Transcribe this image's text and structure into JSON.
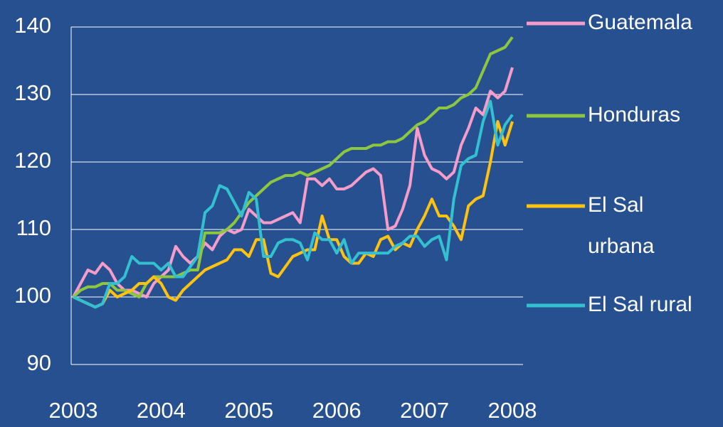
{
  "chart_data": {
    "type": "line",
    "categories": [
      "2003",
      null,
      null,
      null,
      null,
      null,
      null,
      null,
      null,
      null,
      null,
      null,
      "2004",
      null,
      null,
      null,
      null,
      null,
      null,
      null,
      null,
      null,
      null,
      null,
      "2005",
      null,
      null,
      null,
      null,
      null,
      null,
      null,
      null,
      null,
      null,
      null,
      "2006",
      null,
      null,
      null,
      null,
      null,
      null,
      null,
      null,
      null,
      null,
      null,
      "2007",
      null,
      null,
      null,
      null,
      null,
      null,
      null,
      null,
      null,
      null,
      null,
      "2008"
    ],
    "series": [
      {
        "name": "Guatemala",
        "color": "#f59ccb",
        "values": [
          100,
          102,
          104,
          103.5,
          105,
          104,
          102,
          101,
          101,
          100.5,
          100,
          102,
          103,
          104,
          107.5,
          106,
          105,
          106,
          108,
          107,
          109,
          110,
          109.5,
          110,
          113,
          112,
          111,
          111,
          111.5,
          112,
          112.5,
          111,
          117.5,
          117.5,
          116.5,
          117.5,
          116,
          116,
          116.5,
          117.5,
          118.5,
          119,
          118,
          110,
          110.5,
          113,
          116.5,
          125,
          121,
          119,
          118.5,
          117.5,
          118.5,
          122.5,
          125,
          128,
          127,
          130.5,
          129.5,
          130.5,
          134
        ]
      },
      {
        "name": "Honduras",
        "color": "#8dc63f",
        "values": [
          100,
          101,
          101.5,
          101.5,
          102,
          102,
          101,
          101,
          100.5,
          100,
          102,
          103,
          103,
          103,
          103,
          103.5,
          104,
          104,
          109.5,
          109.5,
          109.5,
          110,
          111,
          112.5,
          114,
          115,
          116,
          117,
          117.5,
          118,
          118,
          118.5,
          118,
          118.5,
          119,
          119.5,
          120.5,
          121.5,
          122,
          122,
          122,
          122.5,
          122.5,
          123,
          123,
          123.5,
          124.5,
          125.5,
          126,
          127,
          128,
          128,
          128.5,
          129.5,
          130,
          131,
          133.5,
          136,
          136.5,
          137,
          138.5
        ]
      },
      {
        "name": "El Sal urbana",
        "color": "#ffc20e",
        "values": [
          100,
          99.5,
          99,
          98.5,
          99,
          101,
          100,
          100.5,
          101,
          102,
          102,
          103,
          102,
          100,
          99.5,
          101,
          102,
          103,
          104,
          104.5,
          105,
          105.5,
          107,
          107,
          106,
          108.5,
          108.5,
          103.5,
          103,
          104.5,
          106,
          106.5,
          107,
          107,
          112,
          108.5,
          108.5,
          106,
          105,
          105,
          106.5,
          106,
          108.5,
          109,
          107,
          108,
          107.5,
          110,
          112,
          114.5,
          112,
          112,
          110.5,
          108.5,
          113.5,
          114.5,
          115,
          120,
          126,
          122.5,
          126
        ]
      },
      {
        "name": "El Sal rural",
        "color": "#33c1d1",
        "values": [
          100,
          99.5,
          99,
          98.5,
          99,
          102,
          102,
          103,
          106,
          105,
          105,
          105,
          104,
          105,
          103,
          103,
          104.5,
          106,
          112.5,
          113.5,
          116.5,
          116,
          114,
          112,
          115.5,
          114.5,
          106,
          106,
          108,
          108.5,
          108.5,
          108,
          105.5,
          109.5,
          108.5,
          108.5,
          106.5,
          108.5,
          105,
          106.5,
          106.5,
          106.5,
          106.5,
          106.5,
          107.5,
          108,
          109,
          109,
          107.5,
          108.5,
          109,
          105.5,
          114.5,
          119.5,
          120.5,
          121,
          126,
          129,
          122.5,
          125.5,
          127
        ]
      }
    ],
    "ylim": [
      90,
      140
    ],
    "yticks": [
      90,
      100,
      110,
      120,
      130,
      140
    ],
    "grid": true
  }
}
